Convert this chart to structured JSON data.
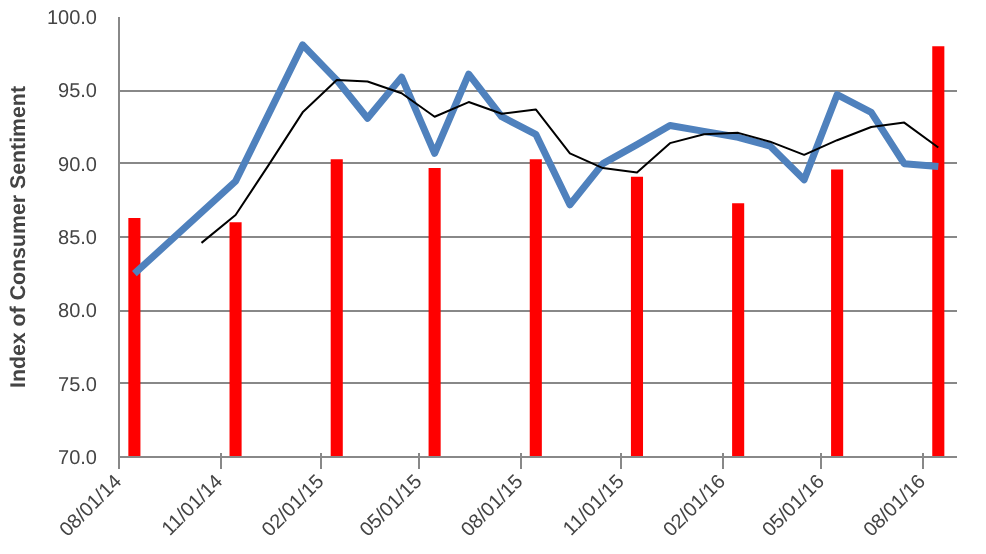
{
  "chart_data": {
    "type": "line",
    "ylabel": "Index of Consumer Sentiment",
    "ylim": [
      70,
      100
    ],
    "yticks": [
      {
        "value": 70,
        "label": "70.0"
      },
      {
        "value": 75,
        "label": "75.0"
      },
      {
        "value": 80,
        "label": "80.0"
      },
      {
        "value": 85,
        "label": "85.0"
      },
      {
        "value": 90,
        "label": "90.0"
      },
      {
        "value": 95,
        "label": "95.0"
      },
      {
        "value": 100,
        "label": "100.0"
      }
    ],
    "xlim": [
      "2014-08-01",
      "2016-09-01"
    ],
    "xticks": [
      {
        "value": "2014-08-01",
        "label": "08/01/14"
      },
      {
        "value": "2014-11-01",
        "label": "11/01/14"
      },
      {
        "value": "2015-02-01",
        "label": "02/01/15"
      },
      {
        "value": "2015-05-01",
        "label": "05/01/15"
      },
      {
        "value": "2015-08-01",
        "label": "08/01/15"
      },
      {
        "value": "2015-11-01",
        "label": "11/01/15"
      },
      {
        "value": "2016-02-01",
        "label": "02/01/16"
      },
      {
        "value": "2016-05-01",
        "label": "05/01/16"
      },
      {
        "value": "2016-08-01",
        "label": "08/01/16"
      }
    ],
    "grid": "y",
    "series": [
      {
        "type": "bar",
        "color": "#ff0000",
        "x": [
          "2014-08-15",
          "2014-11-15",
          "2015-02-15",
          "2015-05-15",
          "2015-08-15",
          "2015-11-15",
          "2016-02-15",
          "2016-05-15",
          "2016-08-15"
        ],
        "values": [
          86.3,
          86.0,
          90.3,
          89.7,
          90.3,
          89.1,
          87.3,
          89.6,
          98.0
        ]
      },
      {
        "color": "#4f81bd",
        "x": [
          "2014-08-15",
          "2014-11-15",
          "2015-01-15",
          "2015-02-15",
          "2015-03-15",
          "2015-04-15",
          "2015-05-15",
          "2015-06-15",
          "2015-07-15",
          "2015-08-15",
          "2015-09-15",
          "2015-10-15",
          "2015-11-15",
          "2015-12-15",
          "2016-01-15",
          "2016-02-15",
          "2016-03-15",
          "2016-04-15",
          "2016-05-15",
          "2016-06-15",
          "2016-07-15",
          "2016-08-15"
        ],
        "values": [
          82.5,
          88.8,
          98.1,
          95.7,
          93.1,
          95.9,
          90.7,
          96.1,
          93.2,
          92.0,
          87.2,
          90.0,
          91.3,
          92.6,
          92.2,
          91.8,
          91.2,
          88.9,
          94.7,
          93.5,
          90.0,
          89.8
        ]
      },
      {
        "color": "#000000",
        "x": [
          "2014-10-15",
          "2014-11-15",
          "2014-12-15",
          "2015-01-15",
          "2015-02-15",
          "2015-03-15",
          "2015-04-15",
          "2015-05-15",
          "2015-06-15",
          "2015-07-15",
          "2015-08-15",
          "2015-09-15",
          "2015-10-15",
          "2015-11-15",
          "2015-12-15",
          "2016-01-15",
          "2016-02-15",
          "2016-03-15",
          "2016-04-15",
          "2016-05-15",
          "2016-06-15",
          "2016-07-15",
          "2016-08-15"
        ],
        "values": [
          84.6,
          86.5,
          89.9,
          93.5,
          95.7,
          95.6,
          94.8,
          93.2,
          94.2,
          93.4,
          93.7,
          90.7,
          89.7,
          89.4,
          91.4,
          92.0,
          92.1,
          91.5,
          90.6,
          91.6,
          92.5,
          92.8,
          91.1
        ]
      }
    ]
  }
}
